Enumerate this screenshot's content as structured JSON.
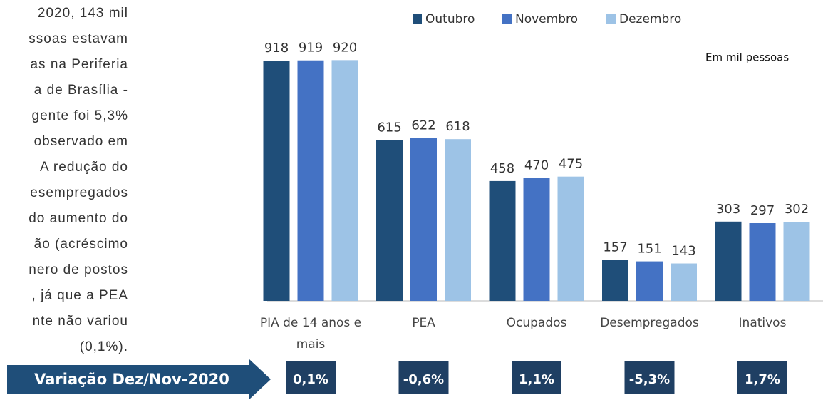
{
  "paragraph_lines": [
    "2020, 143 mil",
    "ssoas estavam",
    "as na Periferia",
    "a de Brasília -",
    "gente foi 5,3%",
    "observado em",
    "A redução do",
    "esempregados",
    "do aumento do",
    "ão (acréscimo",
    "nero de postos",
    ", já que a PEA",
    "nte não variou",
    "(0,1%)."
  ],
  "chart_data": {
    "type": "bar",
    "categories": [
      "PIA de 14 anos e mais",
      "PEA",
      "Ocupados",
      "Desempregados",
      "Inativos"
    ],
    "series": [
      {
        "name": "Outubro",
        "color": "#1f4e79",
        "values": [
          918,
          615,
          458,
          157,
          303
        ]
      },
      {
        "name": "Novembro",
        "color": "#4472c4",
        "values": [
          919,
          622,
          470,
          151,
          297
        ]
      },
      {
        "name": "Dezembro",
        "color": "#9dc3e6",
        "values": [
          920,
          618,
          475,
          143,
          302
        ]
      }
    ],
    "ylim": [
      0,
      1000
    ],
    "legend": "top",
    "annotation": "Em mil pessoas"
  },
  "variation": {
    "label": "Variação Dez/Nov-2020",
    "values": [
      "0,1%",
      "-0,6%",
      "1,1%",
      "-5,3%",
      "1,7%"
    ]
  }
}
